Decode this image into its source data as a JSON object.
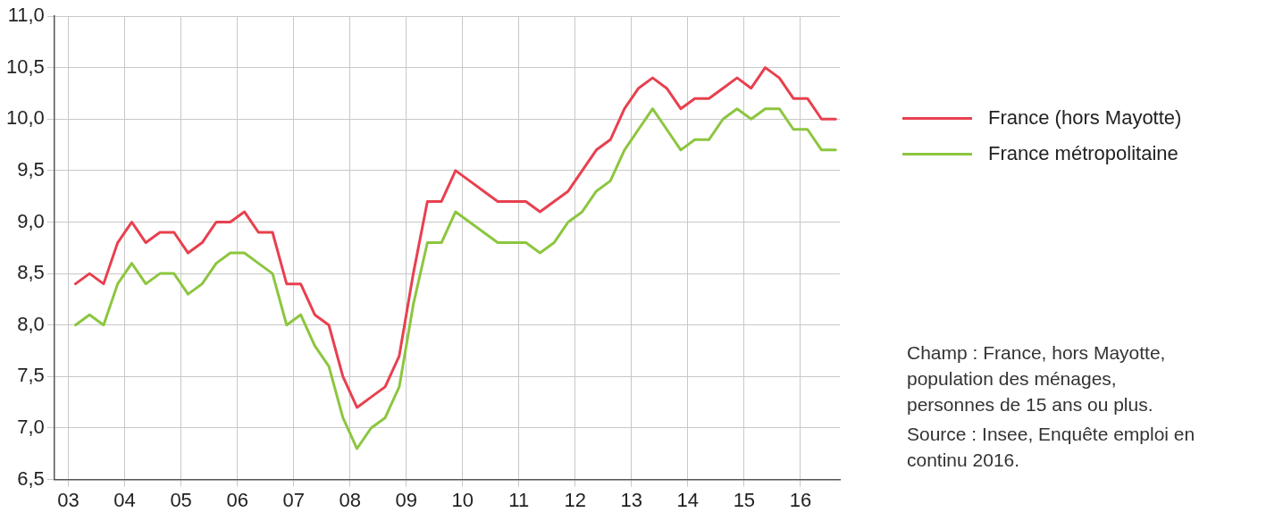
{
  "chart_data": {
    "type": "line",
    "x": [
      2003.125,
      2003.375,
      2003.625,
      2003.875,
      2004.125,
      2004.375,
      2004.625,
      2004.875,
      2005.125,
      2005.375,
      2005.625,
      2005.875,
      2006.125,
      2006.375,
      2006.625,
      2006.875,
      2007.125,
      2007.375,
      2007.625,
      2007.875,
      2008.125,
      2008.375,
      2008.625,
      2008.875,
      2009.125,
      2009.375,
      2009.625,
      2009.875,
      2010.125,
      2010.375,
      2010.625,
      2010.875,
      2011.125,
      2011.375,
      2011.625,
      2011.875,
      2012.125,
      2012.375,
      2012.625,
      2012.875,
      2013.125,
      2013.375,
      2013.625,
      2013.875,
      2014.125,
      2014.375,
      2014.625,
      2014.875,
      2015.125,
      2015.375,
      2015.625,
      2015.875,
      2016.125,
      2016.375,
      2016.625
    ],
    "series": [
      {
        "name": "France (hors Mayotte)",
        "color": "#e8404f",
        "values": [
          8.4,
          8.5,
          8.4,
          8.8,
          9.0,
          8.8,
          8.9,
          8.9,
          8.7,
          8.8,
          9.0,
          9.0,
          9.1,
          8.9,
          8.9,
          8.4,
          8.4,
          8.1,
          8.0,
          7.5,
          7.2,
          7.3,
          7.4,
          7.7,
          8.5,
          9.2,
          9.2,
          9.5,
          9.4,
          9.3,
          9.2,
          9.2,
          9.2,
          9.1,
          9.2,
          9.3,
          9.5,
          9.7,
          9.8,
          10.1,
          10.3,
          10.4,
          10.3,
          10.1,
          10.2,
          10.2,
          10.3,
          10.4,
          10.3,
          10.5,
          10.4,
          10.2,
          10.2,
          10.0,
          10.0
        ]
      },
      {
        "name": "France métropolitaine",
        "color": "#8cc63f",
        "values": [
          8.0,
          8.1,
          8.0,
          8.4,
          8.6,
          8.4,
          8.5,
          8.5,
          8.3,
          8.4,
          8.6,
          8.7,
          8.7,
          8.6,
          8.5,
          8.0,
          8.1,
          7.8,
          7.6,
          7.1,
          6.8,
          7.0,
          7.1,
          7.4,
          8.2,
          8.8,
          8.8,
          9.1,
          9.0,
          8.9,
          8.8,
          8.8,
          8.8,
          8.7,
          8.8,
          9.0,
          9.1,
          9.3,
          9.4,
          9.7,
          9.9,
          10.1,
          9.9,
          9.7,
          9.8,
          9.8,
          10.0,
          10.1,
          10.0,
          10.1,
          10.1,
          9.9,
          9.9,
          9.7,
          9.7
        ]
      }
    ],
    "xlim": [
      2002.75,
      2016.7
    ],
    "xticks": [
      {
        "value": 2003,
        "label": "03"
      },
      {
        "value": 2004,
        "label": "04"
      },
      {
        "value": 2005,
        "label": "05"
      },
      {
        "value": 2006,
        "label": "06"
      },
      {
        "value": 2007,
        "label": "07"
      },
      {
        "value": 2008,
        "label": "08"
      },
      {
        "value": 2009,
        "label": "09"
      },
      {
        "value": 2010,
        "label": "10"
      },
      {
        "value": 2011,
        "label": "11"
      },
      {
        "value": 2012,
        "label": "12"
      },
      {
        "value": 2013,
        "label": "13"
      },
      {
        "value": 2014,
        "label": "14"
      },
      {
        "value": 2015,
        "label": "15"
      },
      {
        "value": 2016,
        "label": "16"
      }
    ],
    "ylim": [
      6.5,
      11.0
    ],
    "yticks": [
      {
        "value": 6.5,
        "label": "6,5"
      },
      {
        "value": 7.0,
        "label": "7,0"
      },
      {
        "value": 7.5,
        "label": "7,5"
      },
      {
        "value": 8.0,
        "label": "8,0"
      },
      {
        "value": 8.5,
        "label": "8,5"
      },
      {
        "value": 9.0,
        "label": "9,0"
      },
      {
        "value": 9.5,
        "label": "9,5"
      },
      {
        "value": 10.0,
        "label": "10,0"
      },
      {
        "value": 10.5,
        "label": "10,5"
      },
      {
        "value": 11.0,
        "label": "11,0"
      }
    ],
    "grid": true,
    "legend": "top right",
    "marker": "none",
    "line_style": "solid",
    "annotations": [
      "Champ : France, hors Mayotte, population des ménages, personnes de 15 ans ou plus.",
      "Source : Insee, Enquête emploi en continu 2016."
    ]
  }
}
